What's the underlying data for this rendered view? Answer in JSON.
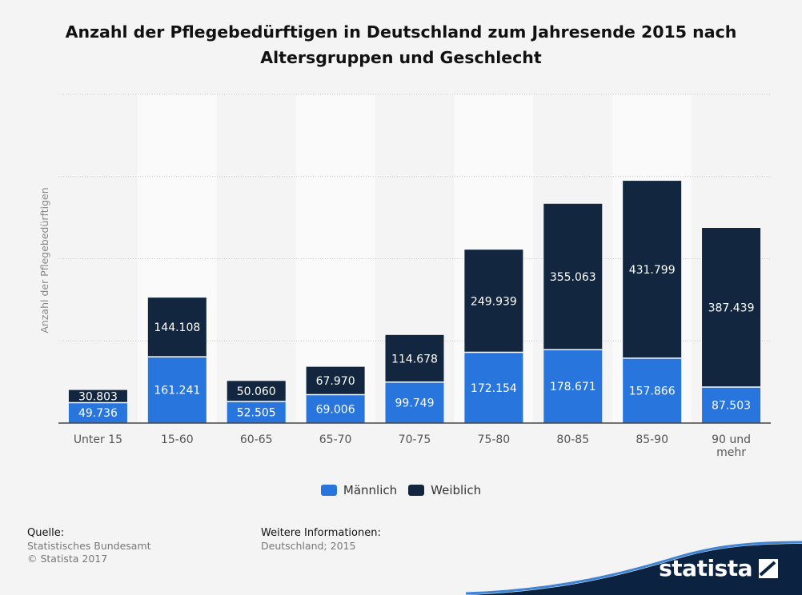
{
  "title": "Anzahl der Pflegebedürftigen in Deutschland zum Jahresende 2015 nach Altersgruppen und Geschlecht",
  "chart_data": {
    "type": "bar",
    "stacked": true,
    "categories": [
      "Unter 15",
      "15-60",
      "60-65",
      "65-70",
      "70-75",
      "75-80",
      "80-85",
      "85-90",
      "90 und mehr"
    ],
    "category_lines": [
      [
        "Unter 15"
      ],
      [
        "15-60"
      ],
      [
        "60-65"
      ],
      [
        "65-70"
      ],
      [
        "70-75"
      ],
      [
        "75-80"
      ],
      [
        "80-85"
      ],
      [
        "85-90"
      ],
      [
        "90 und",
        "mehr"
      ]
    ],
    "series": [
      {
        "name": "Männlich",
        "color": "#2876dd",
        "values": [
          49736,
          161241,
          52505,
          69006,
          99749,
          172154,
          178671,
          157866,
          87503
        ],
        "labels": [
          "49.736",
          "161.241",
          "52.505",
          "69.006",
          "99.749",
          "172.154",
          "178.671",
          "157.866",
          "87.503"
        ]
      },
      {
        "name": "Weiblich",
        "color": "#12263f",
        "values": [
          30803,
          144108,
          50060,
          67970,
          114678,
          249939,
          355063,
          431799,
          387439
        ],
        "labels": [
          "30.803",
          "144.108",
          "50.060",
          "67.970",
          "114.678",
          "249.939",
          "355.063",
          "431.799",
          "387.439"
        ]
      }
    ],
    "xlabel": "",
    "ylabel": "Anzahl der Pflegebedürftigen",
    "ylim": [
      0,
      800000
    ],
    "gridlines": [
      0,
      200000,
      400000,
      600000,
      800000
    ],
    "grid": true,
    "legend": "bottom-center"
  },
  "legend": {
    "male": "Männlich",
    "female": "Weiblich",
    "male_color": "#2876dd",
    "female_color": "#12263f"
  },
  "footer": {
    "source_label": "Quelle:",
    "source": "Statistisches Bundesamt",
    "copyright": "© Statista 2017",
    "info_label": "Weitere Informationen:",
    "info": "Deutschland; 2015"
  },
  "brand": {
    "name": "statista",
    "color": "#0b2340"
  }
}
